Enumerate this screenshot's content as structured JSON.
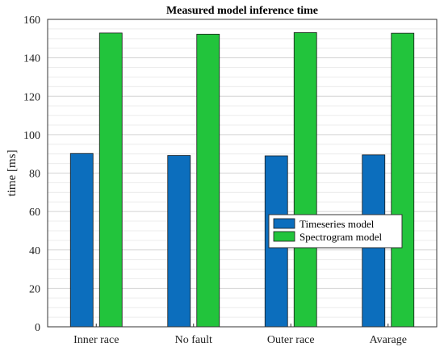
{
  "chart_data": {
    "type": "bar",
    "title": "Measured model inference time",
    "xlabel": "",
    "ylabel": "time [ms]",
    "categories": [
      "Inner race",
      "No fault",
      "Outer race",
      "Avarage"
    ],
    "series": [
      {
        "name": "Timeseries model",
        "values": [
          90.2,
          89.2,
          89.0,
          89.5
        ],
        "color": "#0c6ebd"
      },
      {
        "name": "Spectrogram model",
        "values": [
          152.9,
          152.3,
          153.1,
          152.8
        ],
        "color": "#22c43c"
      }
    ],
    "ylim": [
      0,
      160
    ],
    "yticks": [
      0,
      20,
      40,
      60,
      80,
      100,
      120,
      140,
      160
    ],
    "grid": true,
    "minor_grid": true,
    "legend_position": "lower-right"
  }
}
